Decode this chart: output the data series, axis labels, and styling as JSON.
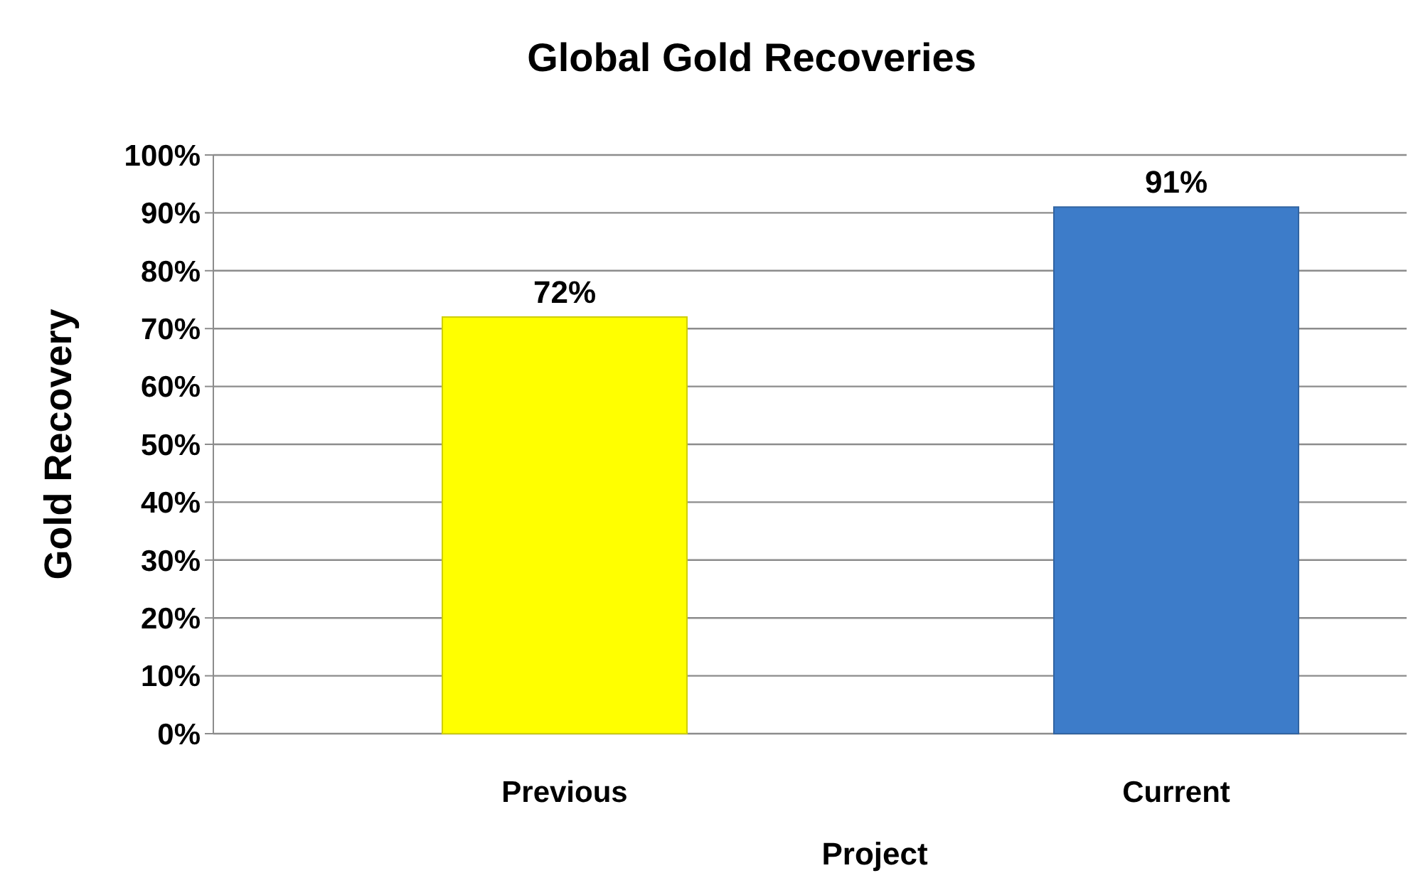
{
  "chart_data": {
    "type": "bar",
    "title": "Global Gold Recoveries",
    "xlabel": "Project",
    "ylabel": "Gold Recovery",
    "categories": [
      "Previous",
      "Current"
    ],
    "values": [
      72,
      91
    ],
    "colors": [
      "#ffff00",
      "#3d7cc9"
    ],
    "value_labels": [
      "72%",
      "91%"
    ],
    "ylim": [
      0,
      100
    ],
    "yticks": [
      {
        "value": 0,
        "label": "0%"
      },
      {
        "value": 10,
        "label": "10%"
      },
      {
        "value": 20,
        "label": "20%"
      },
      {
        "value": 30,
        "label": "30%"
      },
      {
        "value": 40,
        "label": "40%"
      },
      {
        "value": 50,
        "label": "50%"
      },
      {
        "value": 60,
        "label": "60%"
      },
      {
        "value": 70,
        "label": "70%"
      },
      {
        "value": 80,
        "label": "80%"
      },
      {
        "value": 90,
        "label": "90%"
      },
      {
        "value": 100,
        "label": "100%"
      }
    ],
    "grid": true
  }
}
